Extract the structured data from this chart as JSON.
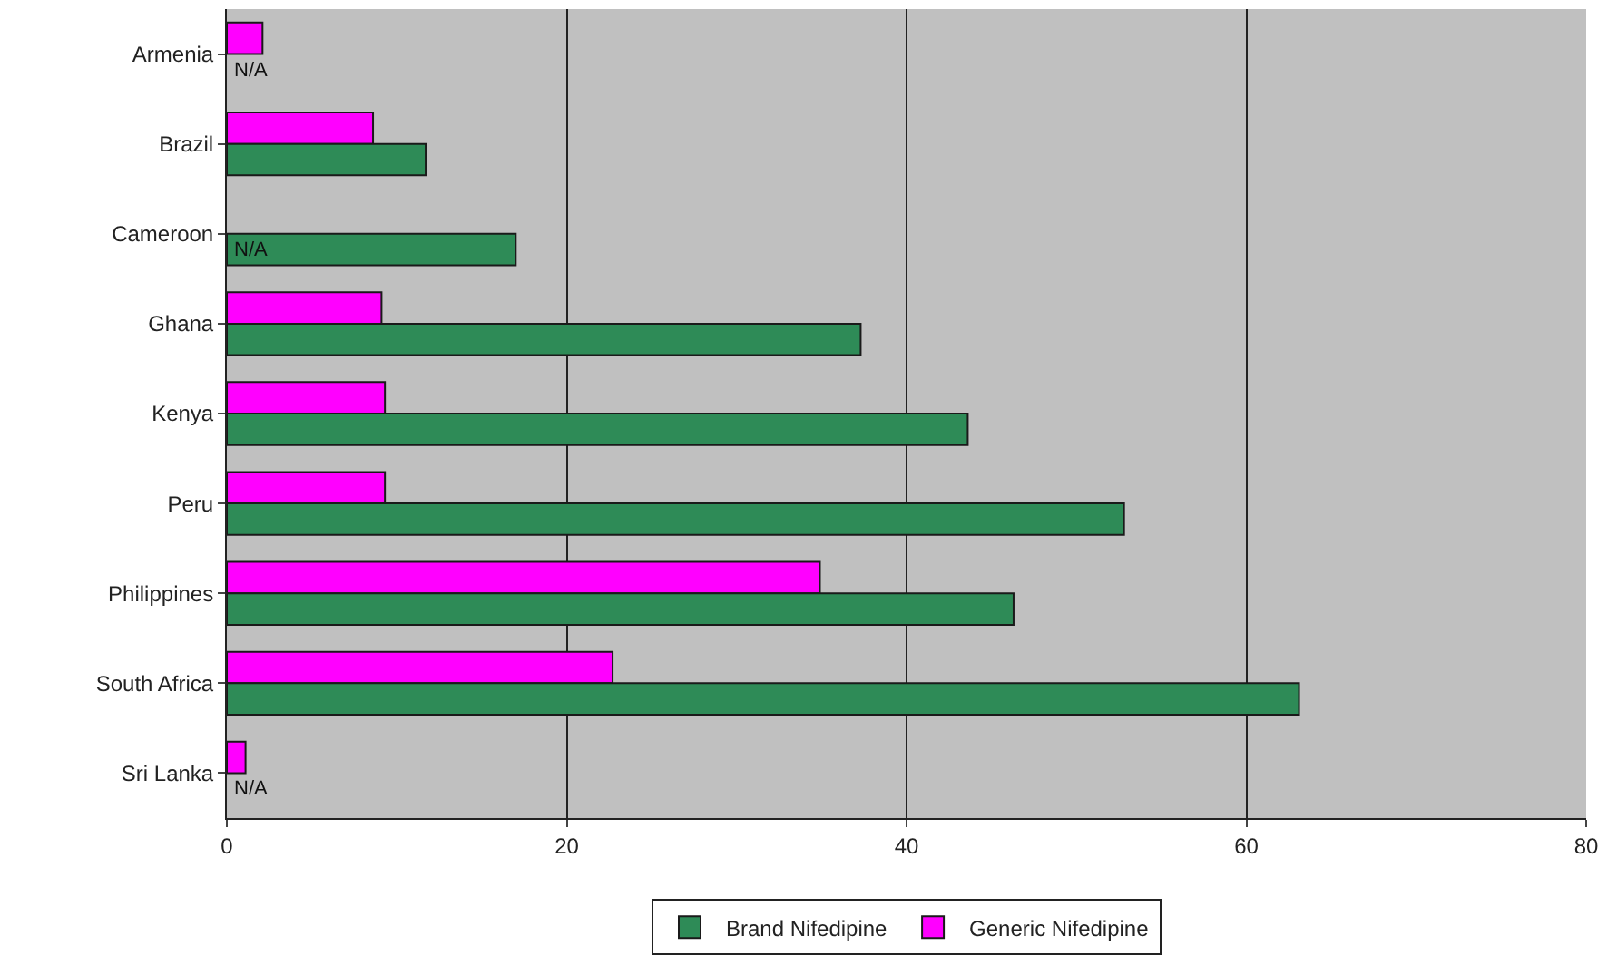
{
  "chart_data": {
    "type": "bar",
    "orientation": "horizontal",
    "categories": [
      "Armenia",
      "Brazil",
      "Cameroon",
      "Ghana",
      "Kenya",
      "Peru",
      "Philippines",
      "South Africa",
      "Sri Lanka"
    ],
    "series": [
      {
        "name": "Brand Nifedipine",
        "color": "#2e8b57",
        "values": [
          null,
          11.7,
          17.0,
          37.3,
          43.6,
          52.8,
          46.3,
          63.1,
          null
        ]
      },
      {
        "name": "Generic Nifedipine",
        "color": "#ff00ff",
        "values": [
          2.1,
          8.6,
          null,
          9.1,
          9.3,
          9.3,
          34.9,
          22.7,
          1.1
        ]
      }
    ],
    "xlim": [
      0,
      80
    ],
    "xticks": [
      0,
      20,
      40,
      60,
      80
    ],
    "grid": "x",
    "legend": "bottom",
    "annotations": [
      {
        "text": "N/A",
        "y": "Armenia"
      },
      {
        "text": "N/A",
        "y": "Cameroon"
      },
      {
        "text": "N/A",
        "y": "Sri Lanka"
      }
    ]
  }
}
